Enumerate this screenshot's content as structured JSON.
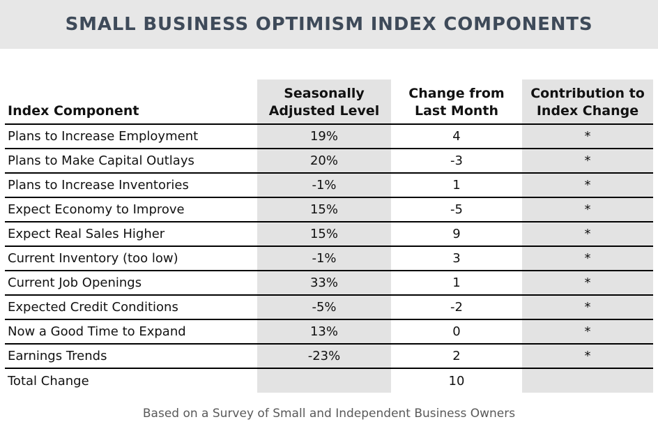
{
  "chart_data": {
    "type": "table",
    "title": "SMALL BUSINESS OPTIMISM INDEX COMPONENTS",
    "columns": [
      "Index Component",
      "Seasonally Adjusted Level",
      "Change from Last Month",
      "Contribution to Index Change"
    ],
    "rows": [
      [
        "Plans to Increase Employment",
        "19%",
        "4",
        "*"
      ],
      [
        "Plans to Make Capital Outlays",
        "20%",
        "-3",
        "*"
      ],
      [
        "Plans to Increase Inventories",
        "-1%",
        "1",
        "*"
      ],
      [
        "Expect Economy to Improve",
        "15%",
        "-5",
        "*"
      ],
      [
        "Expect Real Sales Higher",
        "15%",
        "9",
        "*"
      ],
      [
        "Current Inventory (too low)",
        "-1%",
        "3",
        "*"
      ],
      [
        "Current Job Openings",
        "33%",
        "1",
        "*"
      ],
      [
        "Expected Credit Conditions",
        "-5%",
        "-2",
        "*"
      ],
      [
        "Now a Good Time to Expand",
        "13%",
        "0",
        "*"
      ],
      [
        "Earnings Trends",
        "-23%",
        "2",
        "*"
      ],
      [
        "Total Change",
        "",
        "10",
        ""
      ]
    ],
    "note": "Based on a Survey of Small and Independent Business Owners"
  },
  "colors": {
    "title_bar_bg": "#e7e7e7",
    "title_text": "#3e4a59",
    "shaded_column_bg": "#e3e3e3",
    "row_border": "#000000"
  }
}
